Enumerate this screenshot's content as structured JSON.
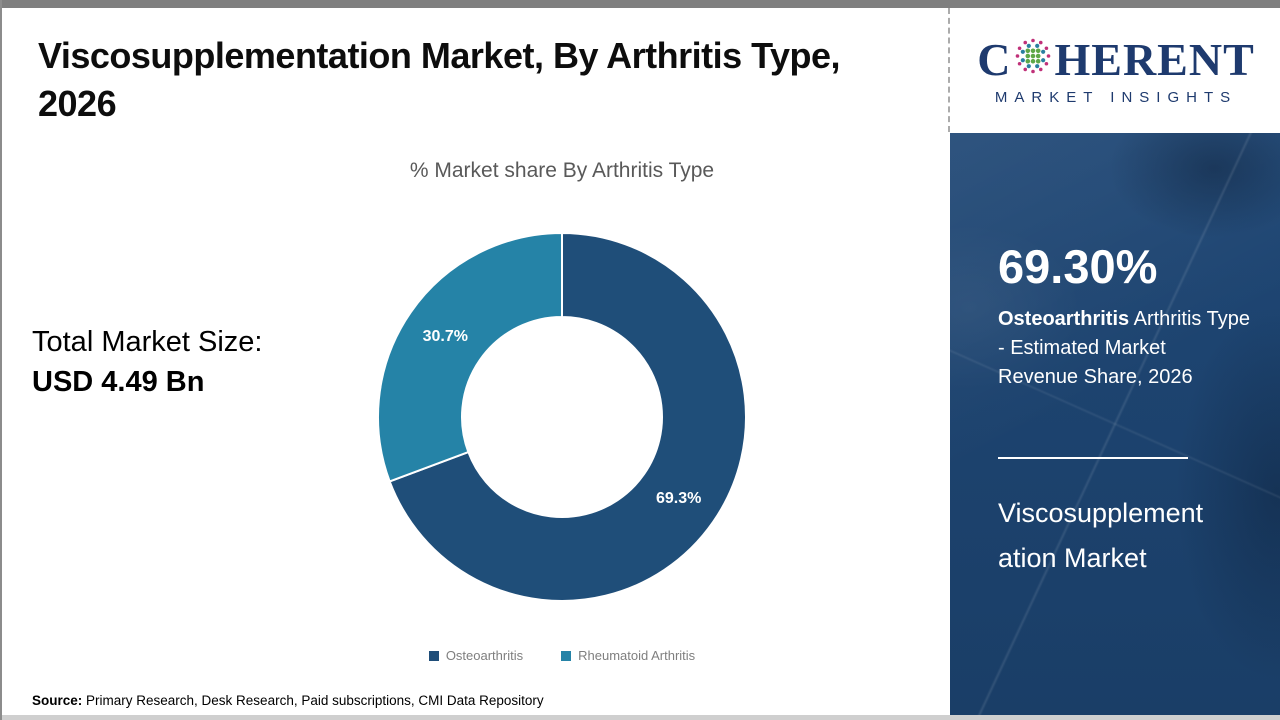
{
  "page": {
    "title_line1": "Viscosupplementation Market, By Arthritis Type,",
    "title_line2": "2026",
    "source_label": "Source:",
    "source_text": " Primary Research, Desk Research, Paid subscriptions, CMI Data Repository"
  },
  "logo": {
    "brand_prefix": "C",
    "brand_suffix": "HERENT",
    "tagline": "MARKET INSIGHTS",
    "navy": "#1e3a6e",
    "globe_dot_colors": {
      "outer": "#c03179",
      "middle": "#2a7fa0",
      "inner": "#5fa848"
    }
  },
  "stats": {
    "total_label": "Total Market Size:",
    "total_value": "USD 4.49 Bn"
  },
  "chart_data": {
    "type": "pie",
    "donut": true,
    "title": "% Market share By Arthritis Type",
    "categories": [
      "Osteoarthritis",
      "Rheumatoid Arthritis"
    ],
    "values": [
      69.3,
      30.7
    ],
    "labels": [
      "69.3%",
      "30.7%"
    ],
    "colors": [
      "#1F4E79",
      "#2583A7"
    ],
    "start_angle_deg": 0,
    "direction": "clockwise",
    "inner_radius_ratio": 0.545,
    "legend_position": "bottom",
    "label_color": "#ffffff"
  },
  "sidebar": {
    "stat": "69.30%",
    "desc_bold": "Osteoarthritis",
    "desc_rest": " Arthritis Type - Estimated Market Revenue Share, 2026",
    "market_line1": "Viscosupplement",
    "market_line2": "ation Market"
  }
}
